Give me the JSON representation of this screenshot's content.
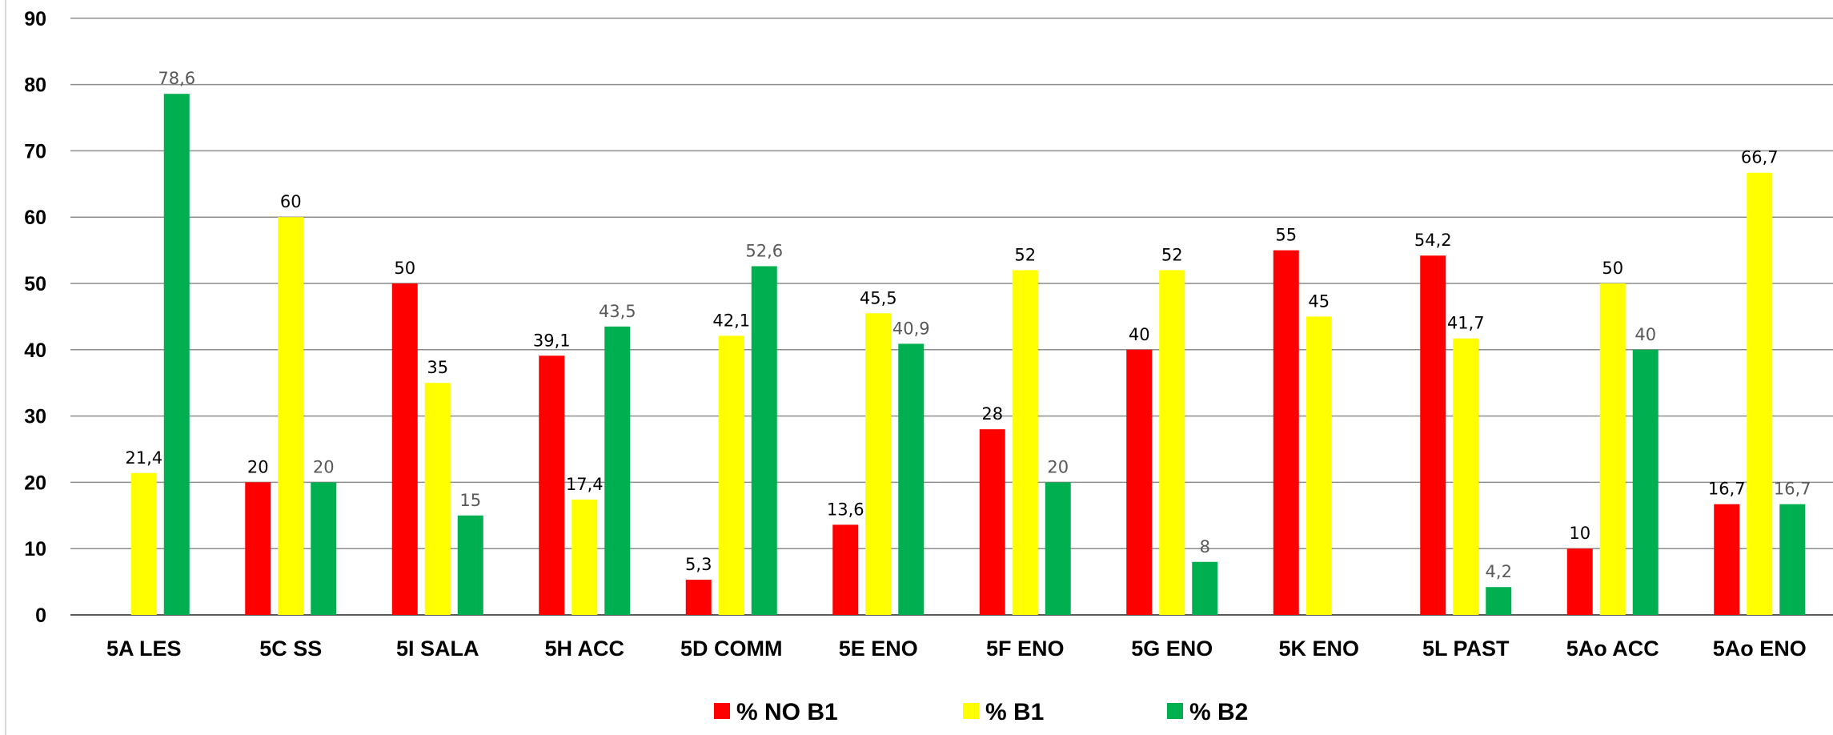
{
  "colors": {
    "no_b1": "#ff0000",
    "b1": "#ffff00",
    "b2": "#00b050",
    "grid": "#8c8c8c"
  },
  "chart_data": {
    "type": "bar",
    "title": "",
    "xlabel": "",
    "ylabel": "",
    "ylim": [
      0,
      90
    ],
    "yticks": [
      0,
      10,
      20,
      30,
      40,
      50,
      60,
      70,
      80,
      90
    ],
    "grid": true,
    "legend_position": "bottom",
    "categories": [
      "5A LES",
      "5C SS",
      "5I SALA",
      "5H ACC",
      "5D COMM",
      "5E ENO",
      "5F ENO",
      "5G ENO",
      "5K ENO",
      "5L PAST",
      "5Ao ACC",
      "5Ao ENO"
    ],
    "series": [
      {
        "name": "% NO B1",
        "color": "#ff0000",
        "values": [
          null,
          20,
          50,
          39.1,
          5.3,
          13.6,
          28,
          40,
          55,
          54.2,
          10,
          16.7
        ],
        "labels": [
          "",
          "20",
          "50",
          "39,1",
          "5,3",
          "13,6",
          "28",
          "40",
          "55",
          "54,2",
          "10",
          "16,7"
        ]
      },
      {
        "name": "% B1",
        "color": "#ffff00",
        "values": [
          21.4,
          60,
          35,
          17.4,
          42.1,
          45.5,
          52,
          52,
          45,
          41.7,
          50,
          66.7
        ],
        "labels": [
          "21,4",
          "60",
          "35",
          "17,4",
          "42,1",
          "45,5",
          "52",
          "52",
          "45",
          "41,7",
          "50",
          "66,7"
        ]
      },
      {
        "name": "% B2",
        "color": "#00b050",
        "values": [
          78.6,
          20,
          15,
          43.5,
          52.6,
          40.9,
          20,
          8,
          null,
          4.2,
          40,
          16.7
        ],
        "labels": [
          "78,6",
          "20",
          "15",
          "43,5",
          "52,6",
          "40,9",
          "20",
          "8",
          "",
          "4,2",
          "40",
          "16,7"
        ]
      }
    ]
  }
}
